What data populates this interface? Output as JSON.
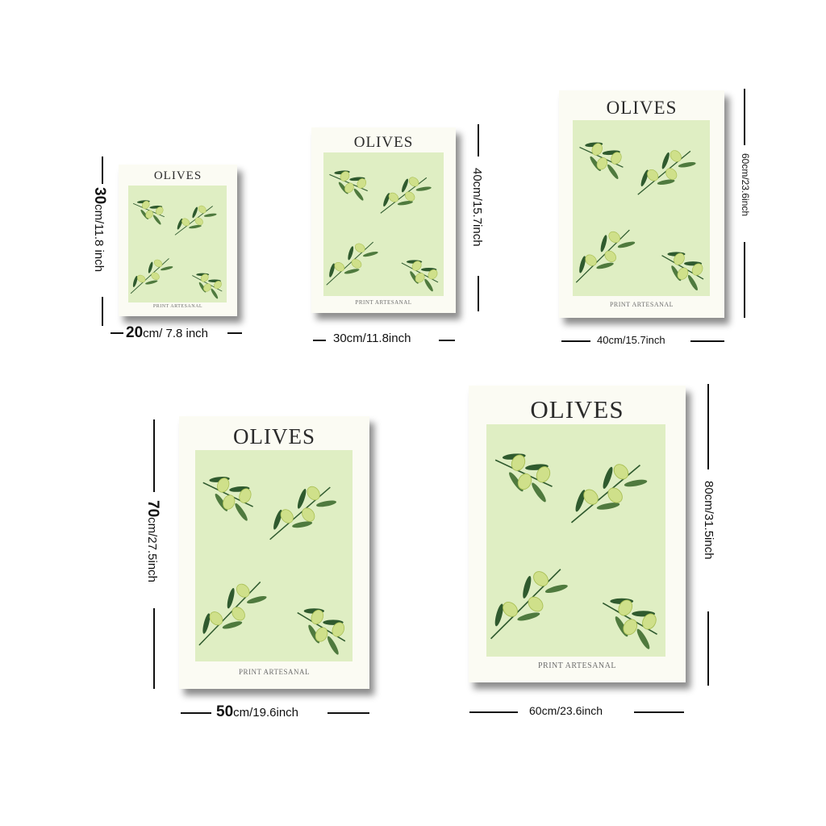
{
  "posters": [
    {
      "title": "OLIVES",
      "footer": "PRINT ARTESANAL",
      "width_label": {
        "num": "20",
        "unit": "cm/ 7.8 inch"
      },
      "height_label": {
        "num": "30",
        "unit": "cm/11.8 inch"
      }
    },
    {
      "title": "OLIVES",
      "footer": "PRINT ARTESANAL",
      "width_label": {
        "num": "",
        "unit": "30cm/11.8inch"
      },
      "height_label": {
        "num": "",
        "unit": "40cm/15.7inch"
      }
    },
    {
      "title": "OLIVES",
      "footer": "PRINT ARTESANAL",
      "width_label": {
        "num": "",
        "unit": "40cm/15.7inch"
      },
      "height_label": {
        "num": "",
        "unit": "60cm/23.6inch"
      }
    },
    {
      "title": "OLIVES",
      "footer": "PRINT ARTESANAL",
      "width_label": {
        "num": "50",
        "unit": "cm/19.6inch"
      },
      "height_label": {
        "num": "70",
        "unit": "cm/27.5inch"
      }
    },
    {
      "title": "OLIVES",
      "footer": "PRINT ARTESANAL",
      "width_label": {
        "num": "",
        "unit": "60cm/23.6inch"
      },
      "height_label": {
        "num": "",
        "unit": "80cm/31.5inch"
      }
    }
  ],
  "colors": {
    "art_bg": "#dfeec3",
    "leaf_dark": "#2f5a2e",
    "olive": "#cfe08a"
  }
}
